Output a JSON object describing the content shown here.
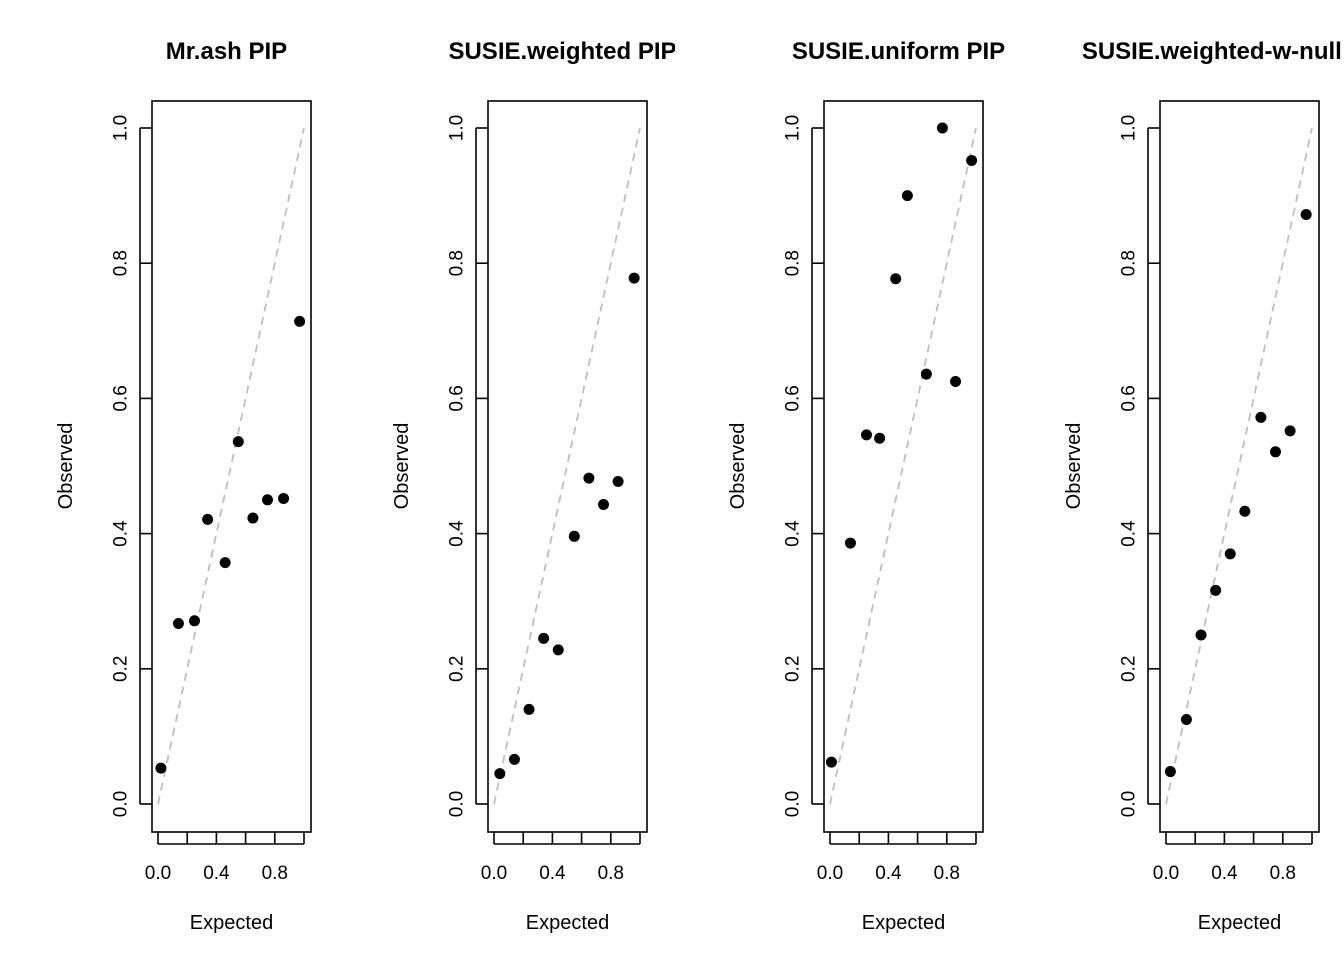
{
  "chart_data": [
    {
      "type": "scatter",
      "title": "Mr.ash PIP",
      "xlabel": "Expected",
      "ylabel": "Observed",
      "xlim": [
        0,
        1
      ],
      "ylim": [
        0,
        1
      ],
      "xticks": [
        "0.0",
        "0.4",
        "0.8"
      ],
      "yticks": [
        "0.0",
        "0.2",
        "0.4",
        "0.6",
        "0.8",
        "1.0"
      ],
      "reference_line": "y = x, dashed gray",
      "points": [
        {
          "x": 0.02,
          "y": 0.053
        },
        {
          "x": 0.14,
          "y": 0.267
        },
        {
          "x": 0.25,
          "y": 0.271
        },
        {
          "x": 0.34,
          "y": 0.421
        },
        {
          "x": 0.46,
          "y": 0.357
        },
        {
          "x": 0.55,
          "y": 0.536
        },
        {
          "x": 0.65,
          "y": 0.423
        },
        {
          "x": 0.75,
          "y": 0.45
        },
        {
          "x": 0.86,
          "y": 0.452
        },
        {
          "x": 0.97,
          "y": 0.714
        }
      ]
    },
    {
      "type": "scatter",
      "title": "SUSIE.weighted PIP",
      "xlabel": "Expected",
      "ylabel": "Observed",
      "xlim": [
        0,
        1
      ],
      "ylim": [
        0,
        1
      ],
      "xticks": [
        "0.0",
        "0.4",
        "0.8"
      ],
      "yticks": [
        "0.0",
        "0.2",
        "0.4",
        "0.6",
        "0.8",
        "1.0"
      ],
      "reference_line": "y = x, dashed gray",
      "points": [
        {
          "x": 0.04,
          "y": 0.045
        },
        {
          "x": 0.14,
          "y": 0.066
        },
        {
          "x": 0.24,
          "y": 0.14
        },
        {
          "x": 0.34,
          "y": 0.245
        },
        {
          "x": 0.44,
          "y": 0.228
        },
        {
          "x": 0.55,
          "y": 0.396
        },
        {
          "x": 0.65,
          "y": 0.482
        },
        {
          "x": 0.75,
          "y": 0.443
        },
        {
          "x": 0.85,
          "y": 0.477
        },
        {
          "x": 0.96,
          "y": 0.778
        }
      ]
    },
    {
      "type": "scatter",
      "title": "SUSIE.uniform PIP",
      "xlabel": "Expected",
      "ylabel": "Observed",
      "xlim": [
        0,
        1
      ],
      "ylim": [
        0,
        1
      ],
      "xticks": [
        "0.0",
        "0.4",
        "0.8"
      ],
      "yticks": [
        "0.0",
        "0.2",
        "0.4",
        "0.6",
        "0.8",
        "1.0"
      ],
      "reference_line": "y = x, dashed gray",
      "points": [
        {
          "x": 0.01,
          "y": 0.062
        },
        {
          "x": 0.14,
          "y": 0.386
        },
        {
          "x": 0.25,
          "y": 0.546
        },
        {
          "x": 0.34,
          "y": 0.541
        },
        {
          "x": 0.45,
          "y": 0.777
        },
        {
          "x": 0.53,
          "y": 0.9
        },
        {
          "x": 0.66,
          "y": 0.636
        },
        {
          "x": 0.77,
          "y": 1.0
        },
        {
          "x": 0.86,
          "y": 0.625
        },
        {
          "x": 0.97,
          "y": 0.952
        }
      ]
    },
    {
      "type": "scatter",
      "title": "SUSIE.weighted-w-null PIP",
      "xlabel": "Expected",
      "ylabel": "Observed",
      "xlim": [
        0,
        1
      ],
      "ylim": [
        0,
        1
      ],
      "xticks": [
        "0.0",
        "0.4",
        "0.8"
      ],
      "yticks": [
        "0.0",
        "0.2",
        "0.4",
        "0.6",
        "0.8",
        "1.0"
      ],
      "reference_line": "y = x, dashed gray",
      "points": [
        {
          "x": 0.03,
          "y": 0.048
        },
        {
          "x": 0.14,
          "y": 0.125
        },
        {
          "x": 0.24,
          "y": 0.25
        },
        {
          "x": 0.34,
          "y": 0.316
        },
        {
          "x": 0.44,
          "y": 0.37
        },
        {
          "x": 0.54,
          "y": 0.433
        },
        {
          "x": 0.65,
          "y": 0.572
        },
        {
          "x": 0.75,
          "y": 0.521
        },
        {
          "x": 0.85,
          "y": 0.552
        },
        {
          "x": 0.96,
          "y": 0.872
        }
      ]
    }
  ]
}
